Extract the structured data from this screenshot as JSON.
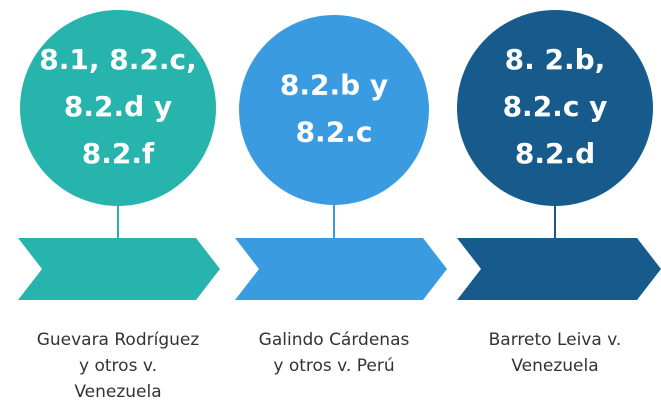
{
  "items": [
    {
      "circle_lines": [
        "8.1, 8.2.c,",
        "8.2.d y",
        "8.2.f"
      ],
      "caption_lines": [
        "Guevara Rodríguez",
        "y otros v.",
        "Venezuela"
      ]
    },
    {
      "circle_lines": [
        "8.2.b y",
        "8.2.c"
      ],
      "caption_lines": [
        "Galindo Cárdenas",
        "y otros v. Perú"
      ]
    },
    {
      "circle_lines": [
        "8. 2.b,",
        "8.2.c y",
        "8.2.d"
      ],
      "caption_lines": [
        "Barreto Leiva v.",
        "Venezuela"
      ]
    }
  ]
}
